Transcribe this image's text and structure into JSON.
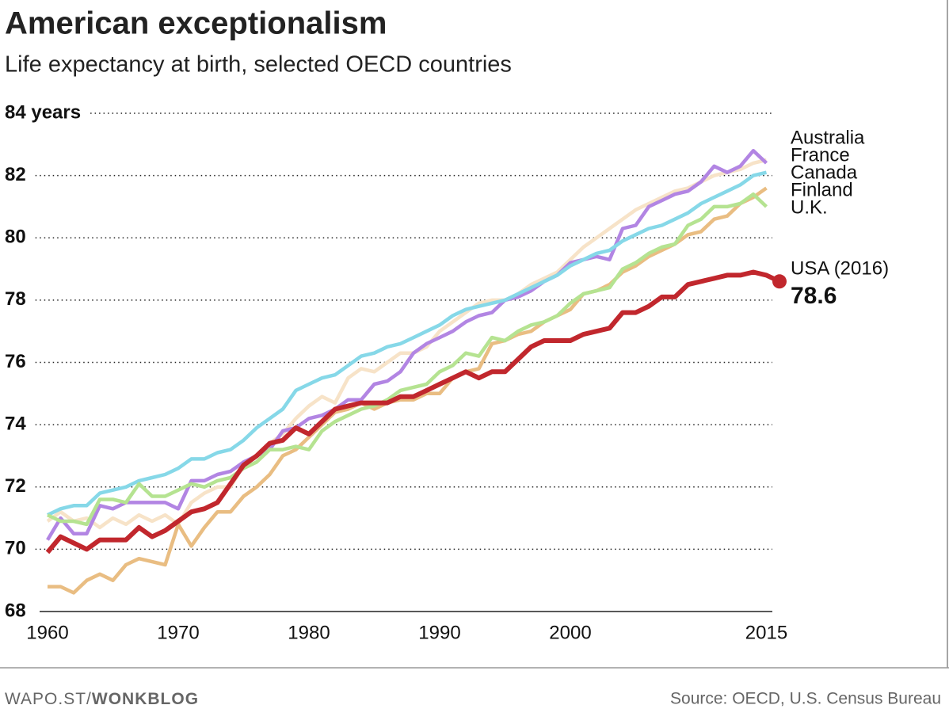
{
  "chart_data": {
    "type": "line",
    "title": "American exceptionalism",
    "subtitle": "Life expectancy at birth, selected OECD countries",
    "x": [
      1960,
      1961,
      1962,
      1963,
      1964,
      1965,
      1966,
      1967,
      1968,
      1969,
      1970,
      1971,
      1972,
      1973,
      1974,
      1975,
      1976,
      1977,
      1978,
      1979,
      1980,
      1981,
      1982,
      1983,
      1984,
      1985,
      1986,
      1987,
      1988,
      1989,
      1990,
      1991,
      1992,
      1993,
      1994,
      1995,
      1996,
      1997,
      1998,
      1999,
      2000,
      2001,
      2002,
      2003,
      2004,
      2005,
      2006,
      2007,
      2008,
      2009,
      2010,
      2011,
      2012,
      2013,
      2014,
      2015,
      2016
    ],
    "xlim": [
      1960,
      2016
    ],
    "xticks": [
      1960,
      1970,
      1980,
      1990,
      2000,
      2015
    ],
    "ylim": [
      68,
      84
    ],
    "yticks": [
      68,
      70,
      72,
      74,
      76,
      78,
      80,
      82,
      {
        "value": 84,
        "label": "84 years"
      }
    ],
    "grid": true,
    "series": [
      {
        "name": "Australia",
        "color": "#f7e3c8",
        "values": [
          70.9,
          71.2,
          70.9,
          71.0,
          70.7,
          71.0,
          70.8,
          71.1,
          70.9,
          71.1,
          70.8,
          71.5,
          71.8,
          72.0,
          72.0,
          72.7,
          73.0,
          73.4,
          73.7,
          74.2,
          74.6,
          74.9,
          74.7,
          75.5,
          75.8,
          75.7,
          76.0,
          76.3,
          76.3,
          76.5,
          77.0,
          77.3,
          77.6,
          77.9,
          78.0,
          78.0,
          78.2,
          78.5,
          78.7,
          78.9,
          79.3,
          79.7,
          80.0,
          80.3,
          80.6,
          80.9,
          81.1,
          81.3,
          81.5,
          81.6,
          81.8,
          82.0,
          82.1,
          82.2,
          82.4,
          82.5,
          null
        ]
      },
      {
        "name": "France",
        "color": "#b285e3",
        "values": [
          70.3,
          71.0,
          70.5,
          70.5,
          71.4,
          71.3,
          71.5,
          71.5,
          71.5,
          71.5,
          71.3,
          72.2,
          72.2,
          72.4,
          72.5,
          72.8,
          73.0,
          73.2,
          73.8,
          73.9,
          74.2,
          74.3,
          74.5,
          74.8,
          74.8,
          75.3,
          75.4,
          75.7,
          76.3,
          76.6,
          76.8,
          77.0,
          77.3,
          77.5,
          77.6,
          78.0,
          78.1,
          78.3,
          78.6,
          78.8,
          79.2,
          79.3,
          79.4,
          79.3,
          80.3,
          80.4,
          81.0,
          81.2,
          81.4,
          81.5,
          81.8,
          82.3,
          82.1,
          82.3,
          82.8,
          82.4,
          null
        ]
      },
      {
        "name": "Canada",
        "color": "#86d8e8",
        "values": [
          71.1,
          71.3,
          71.4,
          71.4,
          71.8,
          71.9,
          72.0,
          72.2,
          72.3,
          72.4,
          72.6,
          72.9,
          72.9,
          73.1,
          73.2,
          73.5,
          73.9,
          74.2,
          74.5,
          75.1,
          75.3,
          75.5,
          75.6,
          75.9,
          76.2,
          76.3,
          76.5,
          76.6,
          76.8,
          77.0,
          77.2,
          77.5,
          77.7,
          77.8,
          77.9,
          78.0,
          78.2,
          78.4,
          78.6,
          78.8,
          79.1,
          79.3,
          79.5,
          79.6,
          79.9,
          80.1,
          80.3,
          80.4,
          80.6,
          80.8,
          81.1,
          81.3,
          81.5,
          81.7,
          82.0,
          82.1,
          null
        ]
      },
      {
        "name": "Finland",
        "color": "#e9bd82",
        "values": [
          68.8,
          68.8,
          68.6,
          69.0,
          69.2,
          69.0,
          69.5,
          69.7,
          69.6,
          69.5,
          70.8,
          70.1,
          70.7,
          71.2,
          71.2,
          71.7,
          72.0,
          72.4,
          73.0,
          73.2,
          73.6,
          74.0,
          74.4,
          74.5,
          74.7,
          74.5,
          74.7,
          74.8,
          74.8,
          75.0,
          75.0,
          75.5,
          75.7,
          75.8,
          76.6,
          76.7,
          76.9,
          77.0,
          77.3,
          77.5,
          77.7,
          78.2,
          78.3,
          78.5,
          78.9,
          79.1,
          79.4,
          79.6,
          79.8,
          80.1,
          80.2,
          80.6,
          80.7,
          81.1,
          81.3,
          81.6,
          null
        ]
      },
      {
        "name": "U.K.",
        "color": "#b5e391",
        "values": [
          71.1,
          70.9,
          70.9,
          70.8,
          71.6,
          71.6,
          71.5,
          72.1,
          71.7,
          71.7,
          71.9,
          72.1,
          72.0,
          72.2,
          72.3,
          72.6,
          72.8,
          73.2,
          73.2,
          73.3,
          73.2,
          73.8,
          74.1,
          74.3,
          74.5,
          74.6,
          74.8,
          75.1,
          75.2,
          75.3,
          75.7,
          75.9,
          76.3,
          76.2,
          76.8,
          76.7,
          77.0,
          77.2,
          77.3,
          77.5,
          77.9,
          78.2,
          78.3,
          78.4,
          79.0,
          79.2,
          79.5,
          79.7,
          79.8,
          80.4,
          80.6,
          81.0,
          81.0,
          81.1,
          81.4,
          81.0,
          null
        ]
      },
      {
        "name": "USA (2016)",
        "color": "#c1272d",
        "values": [
          69.9,
          70.4,
          70.2,
          70.0,
          70.3,
          70.3,
          70.3,
          70.7,
          70.4,
          70.6,
          70.9,
          71.2,
          71.3,
          71.5,
          72.1,
          72.7,
          73.0,
          73.4,
          73.5,
          73.9,
          73.7,
          74.1,
          74.5,
          74.6,
          74.7,
          74.7,
          74.7,
          74.9,
          74.9,
          75.1,
          75.3,
          75.5,
          75.7,
          75.5,
          75.7,
          75.7,
          76.1,
          76.5,
          76.7,
          76.7,
          76.7,
          76.9,
          77.0,
          77.1,
          77.6,
          77.6,
          77.8,
          78.1,
          78.1,
          78.5,
          78.6,
          78.7,
          78.8,
          78.8,
          78.9,
          78.8,
          78.6
        ]
      }
    ],
    "footer": {
      "site": "WAPO.ST/",
      "blog": "WONKBLOG",
      "source": "Source: OECD, U.S. Census Bureau"
    }
  }
}
